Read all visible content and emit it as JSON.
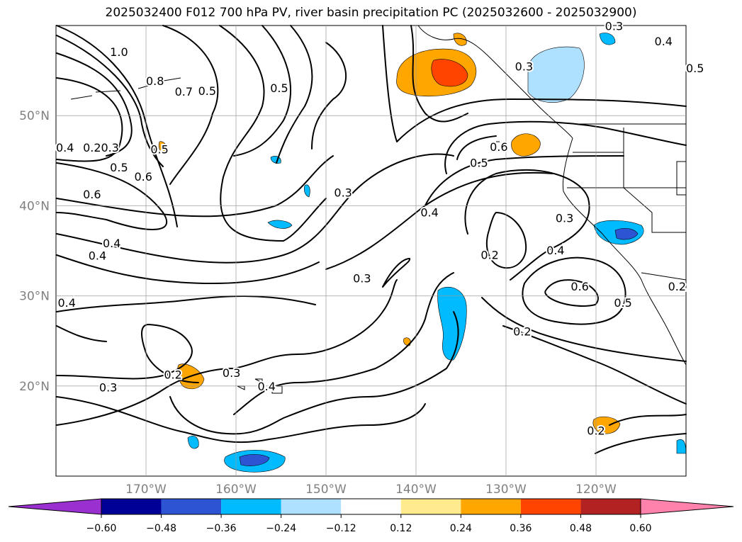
{
  "title": "2025032400 F012 700 hPa PV, river basin precipitation PC (2025032600 - 2025032900)",
  "map": {
    "lon_range": [
      -180,
      -110
    ],
    "lat_range": [
      10,
      60
    ],
    "lon_ticks": [
      {
        "lon": -170,
        "label": "170°W"
      },
      {
        "lon": -160,
        "label": "160°W"
      },
      {
        "lon": -150,
        "label": "150°W"
      },
      {
        "lon": -140,
        "label": "140°W"
      },
      {
        "lon": -130,
        "label": "130°W"
      },
      {
        "lon": -120,
        "label": "120°W"
      }
    ],
    "lat_ticks": [
      {
        "lat": 50,
        "label": "50°N"
      },
      {
        "lat": 40,
        "label": "40°N"
      },
      {
        "lat": 30,
        "label": "30°N"
      },
      {
        "lat": 20,
        "label": "20°N"
      }
    ],
    "grid": true,
    "contour_labels": [
      {
        "text": "1.0",
        "lon": -173.0,
        "lat": 56.6
      },
      {
        "text": "0.8",
        "lon": -169.0,
        "lat": 53.4
      },
      {
        "text": "0.7",
        "lon": -165.8,
        "lat": 52.2
      },
      {
        "text": "0.5",
        "lon": -163.2,
        "lat": 52.3
      },
      {
        "text": "0.5",
        "lon": -155.2,
        "lat": 52.6
      },
      {
        "text": "0.4",
        "lon": -179.0,
        "lat": 46.0
      },
      {
        "text": "0.2",
        "lon": -176.0,
        "lat": 46.0
      },
      {
        "text": "0.3",
        "lon": -174.0,
        "lat": 46.0
      },
      {
        "text": "0.5",
        "lon": -173.0,
        "lat": 43.8
      },
      {
        "text": "0.5",
        "lon": -168.5,
        "lat": 45.8
      },
      {
        "text": "0.6",
        "lon": -170.3,
        "lat": 42.8
      },
      {
        "text": "0.6",
        "lon": -176.0,
        "lat": 40.8
      },
      {
        "text": "0.4",
        "lon": -173.8,
        "lat": 35.4
      },
      {
        "text": "0.4",
        "lon": -175.4,
        "lat": 34.0
      },
      {
        "text": "0.4",
        "lon": -178.8,
        "lat": 28.8
      },
      {
        "text": "0.3",
        "lon": -174.2,
        "lat": 19.4
      },
      {
        "text": "0.2",
        "lon": -167.0,
        "lat": 20.8
      },
      {
        "text": "0.3",
        "lon": -160.5,
        "lat": 21.0
      },
      {
        "text": "0.4",
        "lon": -156.6,
        "lat": 19.5
      },
      {
        "text": "0.3",
        "lon": -148.1,
        "lat": 41.0
      },
      {
        "text": "0.3",
        "lon": -146.0,
        "lat": 31.5
      },
      {
        "text": "0.4",
        "lon": -138.5,
        "lat": 38.8
      },
      {
        "text": "0.5",
        "lon": -133.0,
        "lat": 44.3
      },
      {
        "text": "0.6",
        "lon": -130.8,
        "lat": 46.1
      },
      {
        "text": "0.3",
        "lon": -128.0,
        "lat": 55.0
      },
      {
        "text": "0.3",
        "lon": -118.0,
        "lat": 59.5
      },
      {
        "text": "0.4",
        "lon": -112.5,
        "lat": 57.8
      },
      {
        "text": "0.5",
        "lon": -109.0,
        "lat": 54.8
      },
      {
        "text": "0.3",
        "lon": -123.5,
        "lat": 38.2
      },
      {
        "text": "0.2",
        "lon": -131.8,
        "lat": 34.1
      },
      {
        "text": "0.4",
        "lon": -124.5,
        "lat": 34.6
      },
      {
        "text": "0.6",
        "lon": -121.8,
        "lat": 30.6
      },
      {
        "text": "0.5",
        "lon": -117.0,
        "lat": 28.8
      },
      {
        "text": "0.2",
        "lon": -128.2,
        "lat": 25.6
      },
      {
        "text": "0.2",
        "lon": -120.0,
        "lat": 14.6
      },
      {
        "text": "0.2",
        "lon": -111.0,
        "lat": 30.6
      }
    ]
  },
  "colorbar": {
    "extend": "both",
    "levels": [
      -0.72,
      -0.6,
      -0.48,
      -0.36,
      -0.24,
      -0.12,
      0.12,
      0.24,
      0.36,
      0.48,
      0.6,
      0.72
    ],
    "colors": [
      "#9b30d0",
      "#000096",
      "#2d54d2",
      "#00bbff",
      "#aee0ff",
      "#ffffff",
      "#ffeb8e",
      "#ffa600",
      "#ff4400",
      "#b22222",
      "#ff82ad"
    ],
    "under_color": "#9b30d0",
    "over_color": "#ff82ad",
    "tick_labels": [
      "−0.60",
      "−0.48",
      "−0.36",
      "−0.24",
      "−0.12",
      "0.12",
      "0.24",
      "0.36",
      "0.48",
      "0.60"
    ]
  }
}
